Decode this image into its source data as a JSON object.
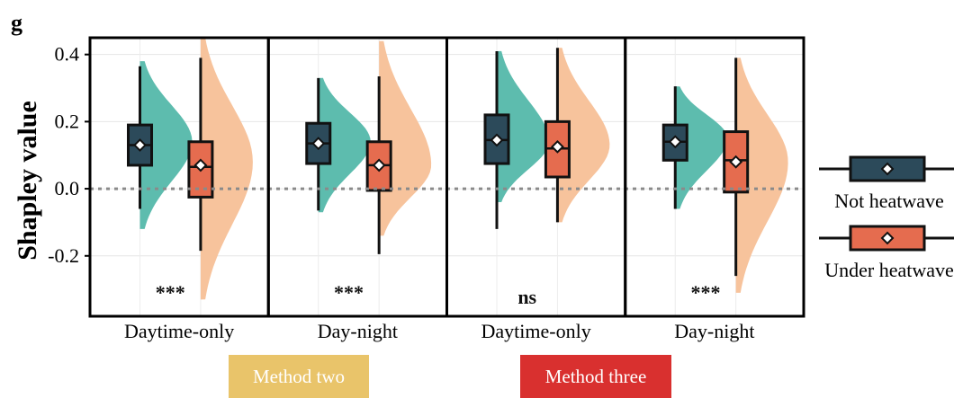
{
  "panel_label": "g",
  "chart_data": {
    "type": "violin-boxplot",
    "ylabel": "Shapley value",
    "ylim": [
      -0.38,
      0.45
    ],
    "yticks": [
      -0.2,
      0.0,
      0.2,
      0.4
    ],
    "ytick_labels": [
      "-0.2",
      "0.0",
      "0.2",
      "0.4"
    ],
    "reference_line": 0.0,
    "panels": [
      {
        "category": "Daytime-only",
        "significance": "***",
        "groups": [
          {
            "series": "Not heatwave",
            "whisker_low": -0.06,
            "q1": 0.07,
            "median": 0.13,
            "q3": 0.19,
            "whisker_high": 0.365,
            "mean": 0.13,
            "violin_min": -0.12,
            "violin_max": 0.38,
            "violin_mode": 0.14
          },
          {
            "series": "Under heatwave",
            "whisker_low": -0.185,
            "q1": -0.025,
            "median": 0.065,
            "q3": 0.14,
            "whisker_high": 0.39,
            "mean": 0.07,
            "violin_min": -0.33,
            "violin_max": 0.45,
            "violin_mode": 0.08
          }
        ]
      },
      {
        "category": "Day-night",
        "significance": "***",
        "groups": [
          {
            "series": "Not heatwave",
            "whisker_low": -0.065,
            "q1": 0.075,
            "median": 0.135,
            "q3": 0.195,
            "whisker_high": 0.33,
            "mean": 0.135,
            "violin_min": -0.07,
            "violin_max": 0.33,
            "violin_mode": 0.14
          },
          {
            "series": "Under heatwave",
            "whisker_low": -0.195,
            "q1": -0.005,
            "median": 0.07,
            "q3": 0.14,
            "whisker_high": 0.335,
            "mean": 0.07,
            "violin_min": -0.14,
            "violin_max": 0.44,
            "violin_mode": 0.07
          }
        ]
      },
      {
        "category": "Daytime-only",
        "significance": "ns",
        "groups": [
          {
            "series": "Not heatwave",
            "whisker_low": -0.12,
            "q1": 0.075,
            "median": 0.145,
            "q3": 0.22,
            "whisker_high": 0.41,
            "mean": 0.145,
            "violin_min": -0.04,
            "violin_max": 0.41,
            "violin_mode": 0.14
          },
          {
            "series": "Under heatwave",
            "whisker_low": -0.1,
            "q1": 0.035,
            "median": 0.12,
            "q3": 0.2,
            "whisker_high": 0.42,
            "mean": 0.125,
            "violin_min": -0.1,
            "violin_max": 0.42,
            "violin_mode": 0.13
          }
        ]
      },
      {
        "category": "Day-night",
        "significance": "***",
        "groups": [
          {
            "series": "Not heatwave",
            "whisker_low": -0.06,
            "q1": 0.085,
            "median": 0.14,
            "q3": 0.19,
            "whisker_high": 0.305,
            "mean": 0.14,
            "violin_min": -0.06,
            "violin_max": 0.305,
            "violin_mode": 0.15
          },
          {
            "series": "Under heatwave",
            "whisker_low": -0.26,
            "q1": -0.01,
            "median": 0.085,
            "q3": 0.17,
            "whisker_high": 0.39,
            "mean": 0.08,
            "violin_min": -0.31,
            "violin_max": 0.39,
            "violin_mode": 0.08
          }
        ]
      }
    ],
    "legend": [
      {
        "label": "Not heatwave",
        "box_color": "#2c4a5a",
        "violin_color": "#5dbcae"
      },
      {
        "label": "Under heatwave",
        "box_color": "#e56c4f",
        "violin_color": "#f7c39c"
      }
    ],
    "legend_position": "right"
  },
  "methods": [
    {
      "label": "Method two",
      "color": "#e9c46a"
    },
    {
      "label": "Method three",
      "color": "#d9302f"
    }
  ]
}
